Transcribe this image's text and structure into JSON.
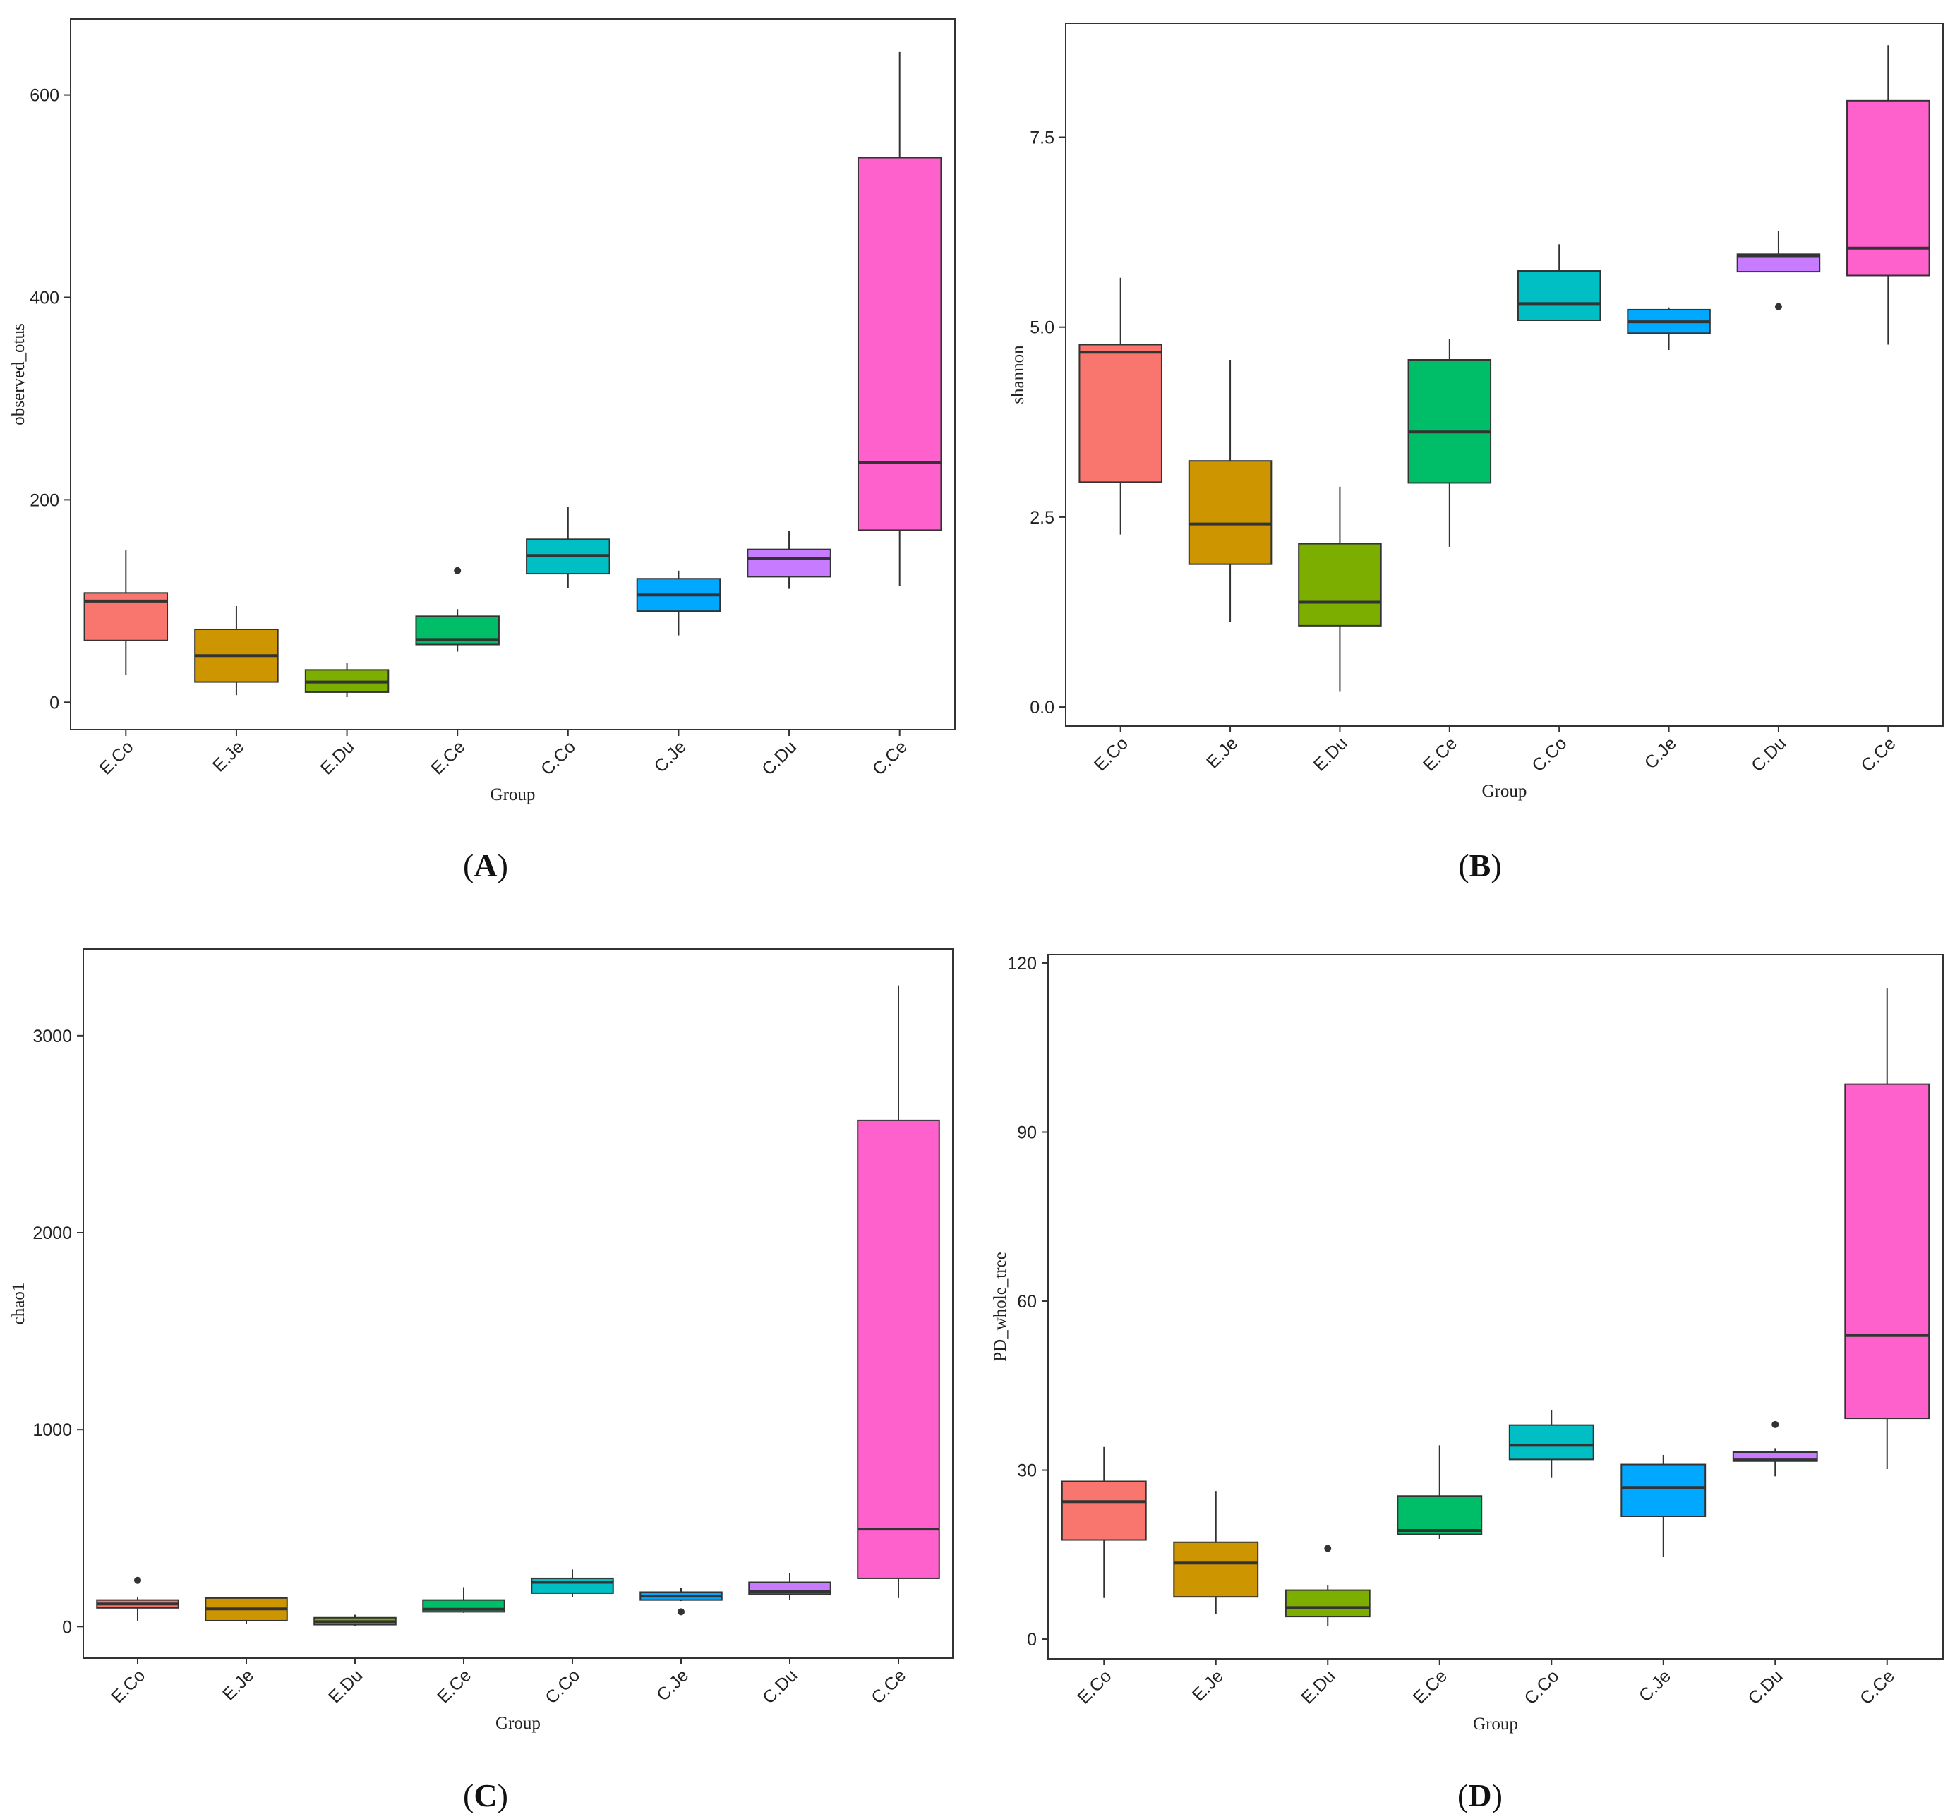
{
  "colors": [
    "#F8766D",
    "#CD9600",
    "#7CAE00",
    "#00BE67",
    "#00BFC4",
    "#00A9FF",
    "#C77CFF",
    "#FF61CC"
  ],
  "chart_data": [
    {
      "panel": "A",
      "type": "boxplot",
      "xlabel": "Group",
      "ylabel": "observed_otus",
      "ylim": [
        -27,
        675
      ],
      "yticks": [
        0,
        200,
        400,
        600
      ],
      "ytick_labels": [
        "0",
        "200",
        "400",
        "600"
      ],
      "grid": false,
      "legend": "none",
      "categories": [
        "E.Co",
        "E.Je",
        "E.Du",
        "E.Ce",
        "C.Co",
        "C.Je",
        "C.Du",
        "C.Ce"
      ],
      "boxes": [
        {
          "low": 27,
          "q1": 61,
          "median": 100,
          "q3": 108,
          "high": 150,
          "outliers": []
        },
        {
          "low": 7,
          "q1": 20,
          "median": 46,
          "q3": 72,
          "high": 95,
          "outliers": []
        },
        {
          "low": 5,
          "q1": 10,
          "median": 20,
          "q3": 32,
          "high": 39,
          "outliers": []
        },
        {
          "low": 50,
          "q1": 57,
          "median": 62,
          "q3": 85,
          "high": 92,
          "outliers": [
            130
          ]
        },
        {
          "low": 113,
          "q1": 127,
          "median": 145,
          "q3": 161,
          "high": 193,
          "outliers": []
        },
        {
          "low": 66,
          "q1": 90,
          "median": 106,
          "q3": 122,
          "high": 130,
          "outliers": []
        },
        {
          "low": 112,
          "q1": 124,
          "median": 142,
          "q3": 151,
          "high": 169,
          "outliers": []
        },
        {
          "low": 115,
          "q1": 170,
          "median": 237,
          "q3": 538,
          "high": 643,
          "outliers": []
        }
      ]
    },
    {
      "panel": "B",
      "type": "boxplot",
      "xlabel": "Group",
      "ylabel": "shannon",
      "ylim": [
        -0.25,
        9.0
      ],
      "yticks": [
        0.0,
        2.5,
        5.0,
        7.5
      ],
      "ytick_labels": [
        "0.0",
        "2.5",
        "5.0",
        "7.5"
      ],
      "grid": false,
      "legend": "none",
      "categories": [
        "E.Co",
        "E.Je",
        "E.Du",
        "E.Ce",
        "C.Co",
        "C.Je",
        "C.Du",
        "C.Ce"
      ],
      "boxes": [
        {
          "low": 2.27,
          "q1": 2.96,
          "median": 4.67,
          "q3": 4.77,
          "high": 5.65,
          "outliers": []
        },
        {
          "low": 1.12,
          "q1": 1.88,
          "median": 2.41,
          "q3": 3.24,
          "high": 4.57,
          "outliers": []
        },
        {
          "low": 0.2,
          "q1": 1.07,
          "median": 1.38,
          "q3": 2.15,
          "high": 2.9,
          "outliers": []
        },
        {
          "low": 2.11,
          "q1": 2.95,
          "median": 3.62,
          "q3": 4.57,
          "high": 4.84,
          "outliers": []
        },
        {
          "low": 5.09,
          "q1": 5.09,
          "median": 5.31,
          "q3": 5.74,
          "high": 6.09,
          "outliers": []
        },
        {
          "low": 4.7,
          "q1": 4.92,
          "median": 5.07,
          "q3": 5.23,
          "high": 5.26,
          "outliers": []
        },
        {
          "low": 5.73,
          "q1": 5.73,
          "median": 5.94,
          "q3": 5.96,
          "high": 6.27,
          "outliers": [
            5.27
          ]
        },
        {
          "low": 4.77,
          "q1": 5.68,
          "median": 6.04,
          "q3": 7.98,
          "high": 8.71,
          "outliers": []
        }
      ]
    },
    {
      "panel": "C",
      "type": "boxplot",
      "xlabel": "Group",
      "ylabel": "chao1",
      "ylim": [
        -160,
        3440
      ],
      "yticks": [
        0,
        1000,
        2000,
        3000
      ],
      "ytick_labels": [
        "0",
        "1000",
        "2000",
        "3000"
      ],
      "grid": false,
      "legend": "none",
      "categories": [
        "E.Co",
        "E.Je",
        "E.Du",
        "E.Ce",
        "C.Co",
        "C.Je",
        "C.Du",
        "C.Ce"
      ],
      "boxes": [
        {
          "low": 30,
          "q1": 95,
          "median": 115,
          "q3": 135,
          "high": 148,
          "outliers": [
            235
          ]
        },
        {
          "low": 15,
          "q1": 30,
          "median": 90,
          "q3": 145,
          "high": 150,
          "outliers": []
        },
        {
          "low": 5,
          "q1": 10,
          "median": 25,
          "q3": 45,
          "high": 60,
          "outliers": []
        },
        {
          "low": 70,
          "q1": 75,
          "median": 88,
          "q3": 135,
          "high": 200,
          "outliers": []
        },
        {
          "low": 150,
          "q1": 170,
          "median": 225,
          "q3": 245,
          "high": 290,
          "outliers": []
        },
        {
          "low": 130,
          "q1": 135,
          "median": 155,
          "q3": 175,
          "high": 195,
          "outliers": [
            75
          ]
        },
        {
          "low": 135,
          "q1": 165,
          "median": 180,
          "q3": 225,
          "high": 270,
          "outliers": []
        },
        {
          "low": 145,
          "q1": 245,
          "median": 495,
          "q3": 2570,
          "high": 3255,
          "outliers": []
        }
      ]
    },
    {
      "panel": "D",
      "type": "boxplot",
      "xlabel": "Group",
      "ylabel": "PD_whole_tree",
      "ylim": [
        -3.5,
        121.5
      ],
      "yticks": [
        0,
        30,
        60,
        90,
        120
      ],
      "ytick_labels": [
        "0",
        "30",
        "60",
        "90",
        "120"
      ],
      "grid": false,
      "legend": "none",
      "categories": [
        "E.Co",
        "E.Je",
        "E.Du",
        "E.Ce",
        "C.Co",
        "C.Je",
        "C.Du",
        "C.Ce"
      ],
      "boxes": [
        {
          "low": 7.3,
          "q1": 17.6,
          "median": 24.4,
          "q3": 28.0,
          "high": 34.1,
          "outliers": []
        },
        {
          "low": 4.5,
          "q1": 7.5,
          "median": 13.5,
          "q3": 17.2,
          "high": 26.3,
          "outliers": []
        },
        {
          "low": 2.3,
          "q1": 4.0,
          "median": 5.6,
          "q3": 8.7,
          "high": 9.6,
          "outliers": [
            16.1
          ]
        },
        {
          "low": 17.8,
          "q1": 18.6,
          "median": 19.3,
          "q3": 25.4,
          "high": 34.4,
          "outliers": []
        },
        {
          "low": 28.6,
          "q1": 31.9,
          "median": 34.4,
          "q3": 38.0,
          "high": 40.6,
          "outliers": []
        },
        {
          "low": 14.6,
          "q1": 21.8,
          "median": 26.9,
          "q3": 31.0,
          "high": 32.7,
          "outliers": []
        },
        {
          "low": 28.9,
          "q1": 31.6,
          "median": 31.8,
          "q3": 33.2,
          "high": 33.9,
          "outliers": [
            38.1
          ]
        },
        {
          "low": 30.2,
          "q1": 39.2,
          "median": 53.9,
          "q3": 98.5,
          "high": 115.6,
          "outliers": []
        }
      ]
    }
  ],
  "panel_labels": [
    "A",
    "B",
    "C",
    "D"
  ]
}
